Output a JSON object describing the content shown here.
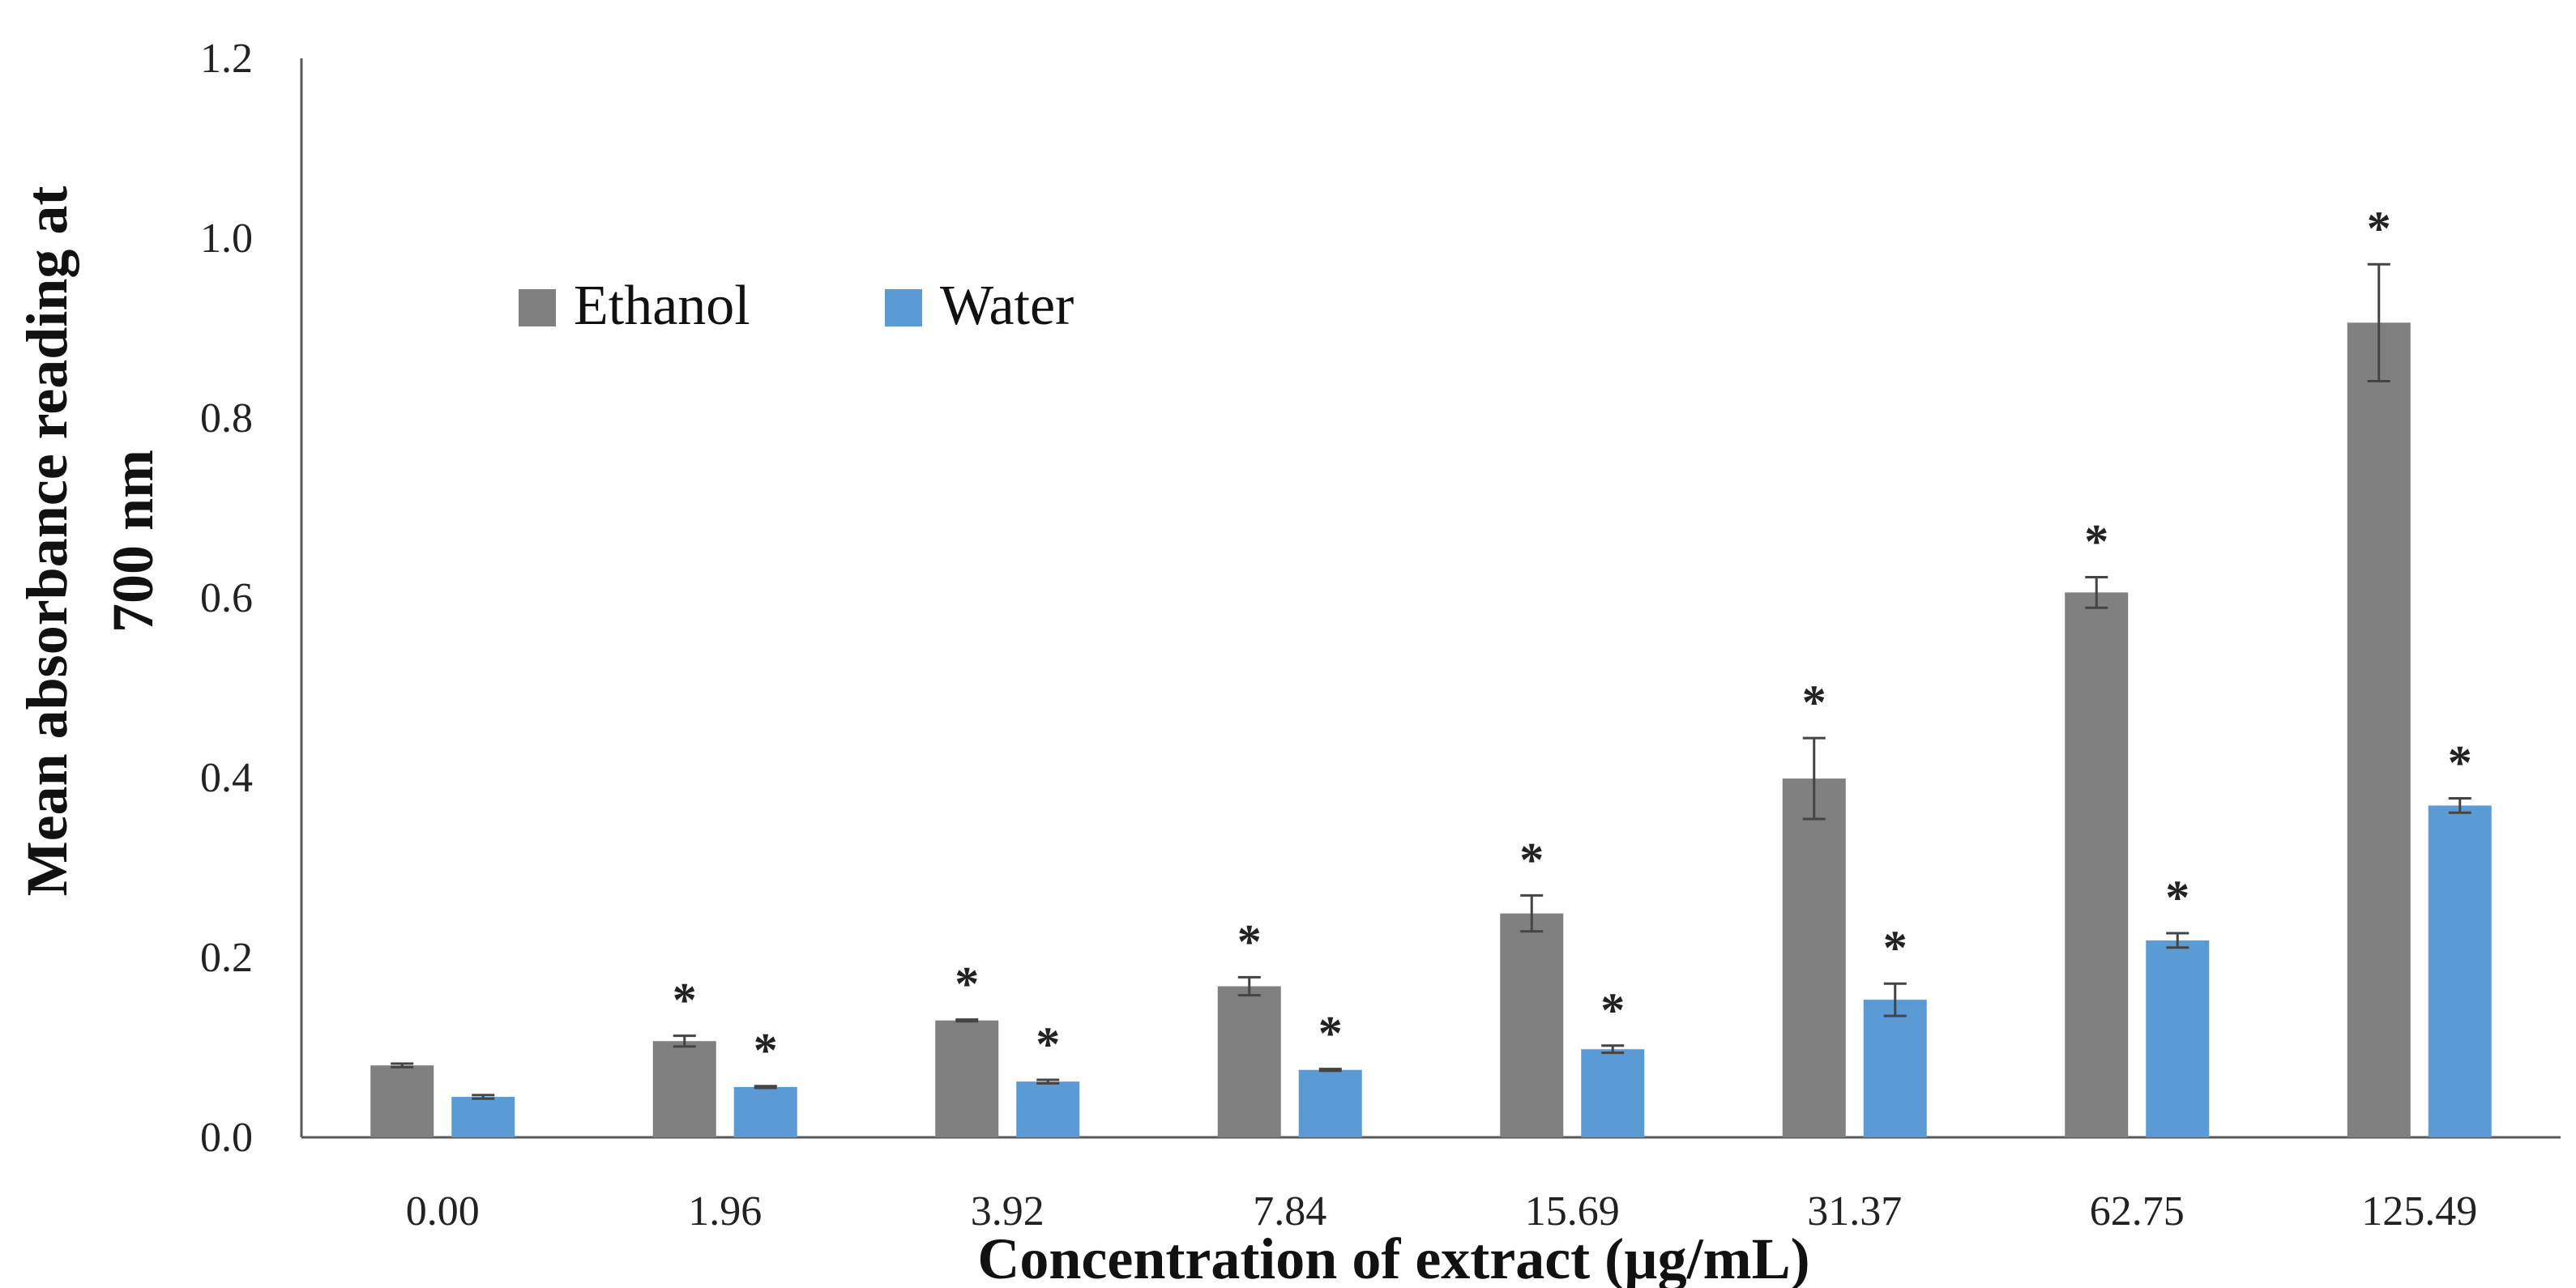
{
  "chart_data": {
    "type": "bar",
    "title": "",
    "xlabel": "Concentration of extract (µg/mL)",
    "ylabel_line1": "Mean absorbance reading at",
    "ylabel_line2": "700 nm",
    "categories": [
      "0.00",
      "1.96",
      "3.92",
      "7.84",
      "15.69",
      "31.37",
      "62.75",
      "125.49"
    ],
    "ylim": [
      0,
      1.2
    ],
    "yticks": [
      "0.0",
      "0.2",
      "0.4",
      "0.6",
      "0.8",
      "1.0",
      "1.2"
    ],
    "ytick_values": [
      0,
      0.2,
      0.4,
      0.6,
      0.8,
      1.0,
      1.2
    ],
    "legend_position": "top-left",
    "grid": false,
    "significance_marker": "*",
    "series": [
      {
        "name": "Ethanol",
        "color": "#808080",
        "values": [
          0.08,
          0.107,
          0.13,
          0.168,
          0.249,
          0.399,
          0.606,
          0.906
        ],
        "errors": [
          0.002,
          0.006,
          0.001,
          0.01,
          0.02,
          0.045,
          0.017,
          0.065
        ],
        "significant": [
          false,
          true,
          true,
          true,
          true,
          true,
          true,
          true
        ]
      },
      {
        "name": "Water",
        "color": "#5B9BD5",
        "values": [
          0.045,
          0.056,
          0.062,
          0.075,
          0.098,
          0.153,
          0.219,
          0.369
        ],
        "errors": [
          0.002,
          0.001,
          0.002,
          0.001,
          0.004,
          0.018,
          0.008,
          0.008
        ],
        "significant": [
          false,
          true,
          true,
          true,
          true,
          true,
          true,
          true
        ]
      }
    ]
  }
}
